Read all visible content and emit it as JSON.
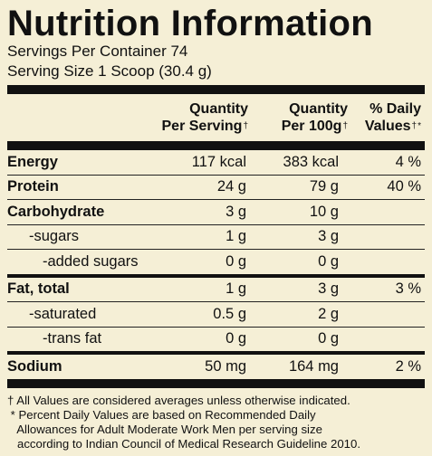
{
  "title": "Nutrition Information",
  "servings_per_container": "Servings Per Container 74",
  "serving_size": "Serving Size 1 Scoop (30.4 g)",
  "headers": {
    "col1_line1": "Quantity",
    "col1_line2": "Per Serving",
    "col2_line1": "Quantity",
    "col2_line2": "Per 100g",
    "col3_line1": "% Daily",
    "col3_line2": "Values",
    "dagger": "†",
    "dv_mark": "*"
  },
  "rows": [
    {
      "name": "Energy",
      "per_serving": "117 kcal",
      "per_100g": "383 kcal",
      "dv": "4 %"
    },
    {
      "name": "Protein",
      "per_serving": "24 g",
      "per_100g": "79 g",
      "dv": "40 %"
    },
    {
      "name": "Carbohydrate",
      "per_serving": "3 g",
      "per_100g": "10 g",
      "dv": ""
    },
    {
      "name": "-sugars",
      "per_serving": "1 g",
      "per_100g": "3 g",
      "dv": ""
    },
    {
      "name": "-added sugars",
      "per_serving": "0 g",
      "per_100g": "0 g",
      "dv": ""
    },
    {
      "name": "Fat, total",
      "per_serving": "1 g",
      "per_100g": "3 g",
      "dv": "3 %"
    },
    {
      "name": "-saturated",
      "per_serving": "0.5 g",
      "per_100g": "2 g",
      "dv": ""
    },
    {
      "name": "-trans fat",
      "per_serving": "0 g",
      "per_100g": "0 g",
      "dv": ""
    },
    {
      "name": "Sodium",
      "per_serving": "50 mg",
      "per_100g": "164 mg",
      "dv": "2 %"
    }
  ],
  "footnotes": [
    "† All Values are considered averages unless otherwise indicated.",
    " * Percent Daily Values are based on Recommended Daily",
    "   Allowances for Adult Moderate Work Men per serving size",
    "   according to Indian Council of Medical Research Guideline 2010."
  ],
  "colors": {
    "background": "#f5efd6",
    "ink": "#111111"
  }
}
